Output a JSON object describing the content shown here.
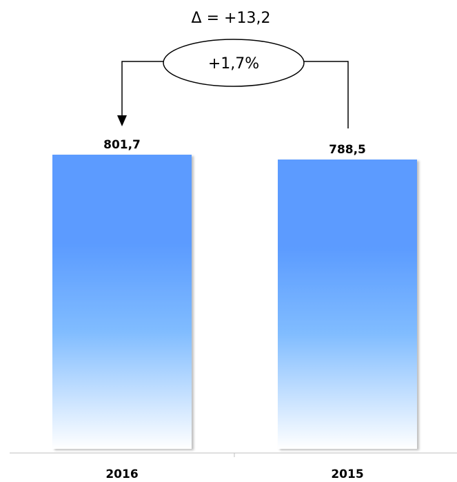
{
  "chart_data": {
    "type": "bar",
    "categories": [
      "2016",
      "2015"
    ],
    "values": [
      801.7,
      788.5
    ],
    "value_labels": [
      "801,7",
      "788,5"
    ],
    "title": "",
    "xlabel": "",
    "ylabel": "",
    "ylim": [
      0,
      801.7
    ],
    "grid": false,
    "legend": "none",
    "colors": {
      "bar_top": "#5b9bff",
      "bar_mid": "#80bcff",
      "bar_bottom": "#ffffff",
      "axis": "#bfbfbf"
    },
    "annotation": {
      "delta_label": "Δ = +13,2",
      "percent_label": "+1,7%"
    }
  }
}
